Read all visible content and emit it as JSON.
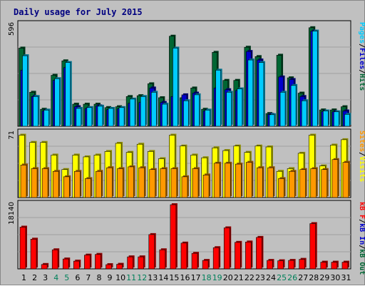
{
  "chart_data": {
    "title": "Daily usage for July 2015",
    "type": "bar",
    "days": [
      "1",
      "2",
      "3",
      "4",
      "5",
      "6",
      "7",
      "8",
      "9",
      "10",
      "11",
      "12",
      "13",
      "14",
      "15",
      "16",
      "17",
      "18",
      "19",
      "20",
      "21",
      "22",
      "23",
      "24",
      "25",
      "26",
      "27",
      "28",
      "29",
      "30",
      "31"
    ],
    "weekend_days": [
      "4",
      "5",
      "11",
      "12",
      "18",
      "19",
      "25",
      "26"
    ],
    "panels": [
      {
        "id": "hits",
        "max_label": "596",
        "ymax": 596,
        "series": [
          {
            "name": "Hits",
            "color": "#006633",
            "values": [
              460,
              200,
              100,
              300,
              385,
              130,
              130,
              130,
              110,
              115,
              175,
              180,
              250,
              168,
              530,
              168,
              225,
              100,
              435,
              270,
              270,
              465,
              410,
              75,
              418,
              285,
              195,
              580,
              96,
              96,
              115
            ]
          },
          {
            "name": "Files",
            "color": "#0000cc",
            "values": [
              330,
              175,
              90,
              270,
              345,
              115,
              105,
              120,
              98,
              103,
              135,
              140,
              225,
              140,
              175,
              185,
              195,
              90,
              225,
              215,
              210,
              440,
              390,
              70,
              290,
              275,
              175,
              560,
              86,
              85,
              90
            ]
          },
          {
            "name": "Pages",
            "color": "#00ccff",
            "values": [
              415,
              175,
              95,
              280,
              375,
              105,
              110,
              118,
              105,
              110,
              160,
              175,
              200,
              130,
              460,
              150,
              185,
              95,
              330,
              200,
              220,
              390,
              375,
              68,
              200,
              240,
              150,
              560,
              90,
              85,
              70
            ]
          }
        ],
        "legend": [
          "Pages",
          "Files",
          "Hits"
        ],
        "legend_colors": [
          "#00ccff",
          "#0000cc",
          "#006633"
        ]
      },
      {
        "id": "visits",
        "max_label": "71",
        "ymax": 71,
        "series": [
          {
            "name": "Visits",
            "color": "#ffff00",
            "values": [
              69,
              61,
              61,
              47,
              31,
              47,
              45,
              47,
              51,
              60,
              50,
              59,
              51,
              43,
              69,
              57,
              47,
              44,
              55,
              52,
              57,
              50,
              57,
              56,
              29,
              32,
              49,
              69,
              35,
              58,
              64
            ]
          },
          {
            "name": "Sites",
            "color": "#ff9900",
            "values": [
              36,
              32,
              32,
              29,
              23,
              29,
              21,
              29,
              33,
              32,
              34,
              33,
              31,
              32,
              32,
              23,
              32,
              25,
              38,
              38,
              37,
              39,
              33,
              33,
              21,
              29,
              31,
              32,
              31,
              42,
              39
            ]
          }
        ],
        "legend": [
          "Sites",
          "Visits"
        ],
        "legend_colors": [
          "#ff9900",
          "#ffff00"
        ]
      },
      {
        "id": "kbytes",
        "max_label": "18140",
        "ymax": 18140,
        "series": [
          {
            "name": "kB F",
            "color": "#ff0000",
            "values": [
              11800,
              8400,
              1250,
              5400,
              2800,
              2200,
              3900,
              4100,
              1200,
              1300,
              3400,
              3400,
              9700,
              5400,
              18140,
              7300,
              4400,
              2400,
              6000,
              11600,
              7500,
              7600,
              8900,
              2400,
              2300,
              2400,
              2700,
              12800,
              1900,
              1900,
              1900
            ]
          }
        ],
        "legend": [
          "kB F",
          "kB In",
          "kB Out"
        ],
        "legend_colors": [
          "#ff0000",
          "#0000cc",
          "#006633"
        ]
      }
    ]
  }
}
